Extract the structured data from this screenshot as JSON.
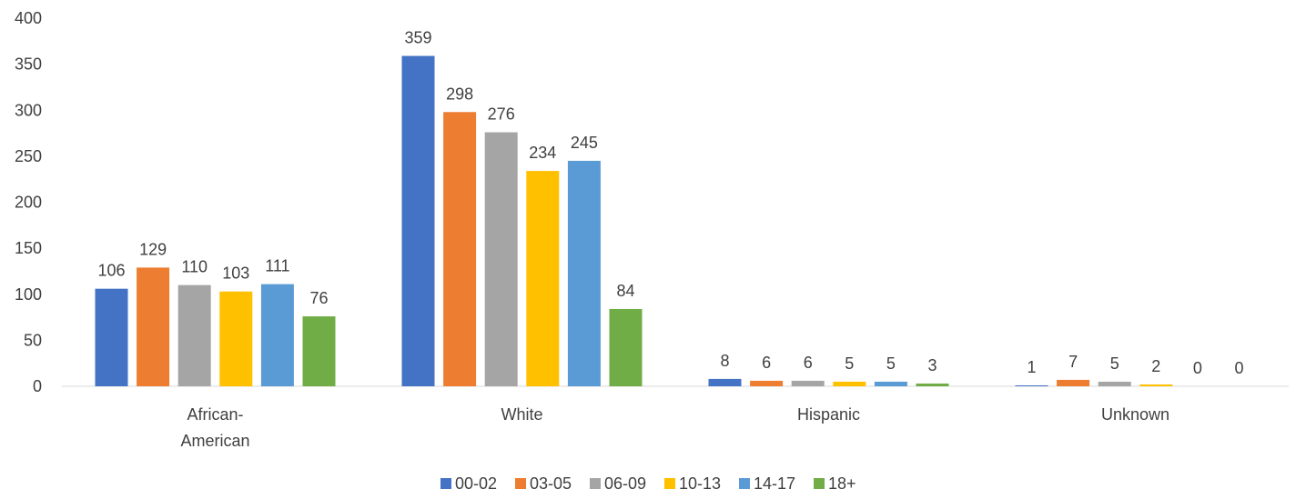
{
  "chart_data": {
    "type": "bar",
    "title": "",
    "xlabel": "",
    "ylabel": "",
    "categories": [
      [
        "African-",
        "American"
      ],
      [
        "White"
      ],
      [
        "Hispanic"
      ],
      [
        "Unknown"
      ]
    ],
    "series": [
      {
        "name": "00-02",
        "color": "#4472C4",
        "values": [
          106,
          359,
          8,
          1
        ]
      },
      {
        "name": "03-05",
        "color": "#ED7D31",
        "values": [
          129,
          298,
          6,
          7
        ]
      },
      {
        "name": "06-09",
        "color": "#A5A5A5",
        "values": [
          110,
          276,
          6,
          5
        ]
      },
      {
        "name": "10-13",
        "color": "#FFC000",
        "values": [
          103,
          234,
          5,
          2
        ]
      },
      {
        "name": "14-17",
        "color": "#5B9BD5",
        "values": [
          111,
          245,
          5,
          0
        ]
      },
      {
        "name": "18+",
        "color": "#70AD47",
        "values": [
          76,
          84,
          3,
          0
        ]
      }
    ],
    "ylim": [
      0,
      400
    ],
    "yticks": [
      0,
      50,
      100,
      150,
      200,
      250,
      300,
      350,
      400
    ],
    "grid": false,
    "legend_position": "bottom-center",
    "data_labels": true
  }
}
